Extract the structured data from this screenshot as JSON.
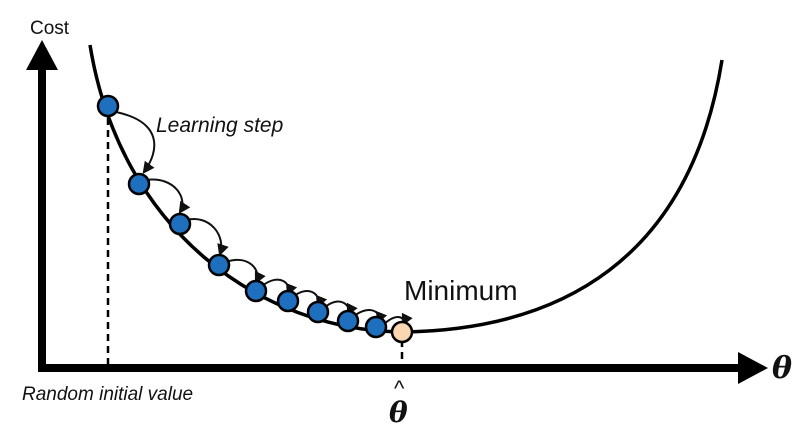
{
  "diagram": {
    "y_axis_label": "Cost",
    "x_axis_label": "θ",
    "step_label": "Learning step",
    "minimum_label": "Minimum",
    "start_label": "Random initial value",
    "optimum_label": "θ",
    "optimum_hat": "^",
    "colors": {
      "step_fill": "#1f6fbf",
      "minimum_fill": "#fad7b0",
      "stroke": "#000000"
    },
    "step_count": 9
  }
}
